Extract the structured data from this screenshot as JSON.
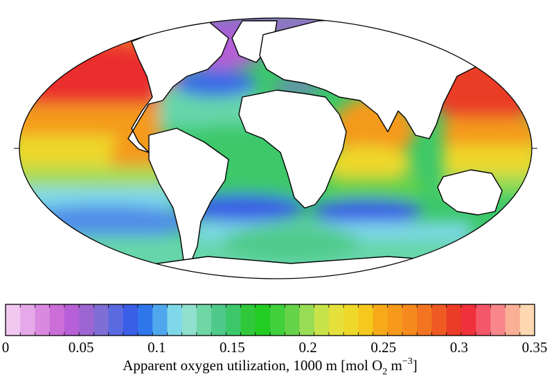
{
  "colorbar": {
    "title_main": "Apparent oxygen utilization, 1000 m [mol O",
    "title_sub": "2",
    "title_mid": " m",
    "title_sup": "−3",
    "title_end": "]",
    "min": 0,
    "max": 0.35,
    "tick_values": [
      0,
      0.05,
      0.1,
      0.15,
      0.2,
      0.25,
      0.3,
      0.35
    ],
    "tick_labels": [
      "0",
      "0.05",
      "0.1",
      "0.15",
      "0.2",
      "0.25",
      "0.3",
      "0.35"
    ],
    "colors": [
      "#f0c8f0",
      "#e6a8e8",
      "#d98ae0",
      "#cc6ed8",
      "#b65fd6",
      "#9d65d2",
      "#7f6ed6",
      "#5a6ae0",
      "#3a5ee6",
      "#2f76ea",
      "#4fa8ee",
      "#7fd8ea",
      "#8fe0cc",
      "#6fd6a6",
      "#4fca8a",
      "#3cc86a",
      "#2ec83a",
      "#22cc22",
      "#3fd03c",
      "#66d24a",
      "#99dc55",
      "#c8e24a",
      "#e6e03c",
      "#eed82a",
      "#f4c81c",
      "#f6aa1a",
      "#f79a1c",
      "#f68a1e",
      "#f37420",
      "#ee5a22",
      "#ea3c26",
      "#f0303a",
      "#f4566a",
      "#f8868a",
      "#fab094",
      "#fdd8b0"
    ]
  }
}
